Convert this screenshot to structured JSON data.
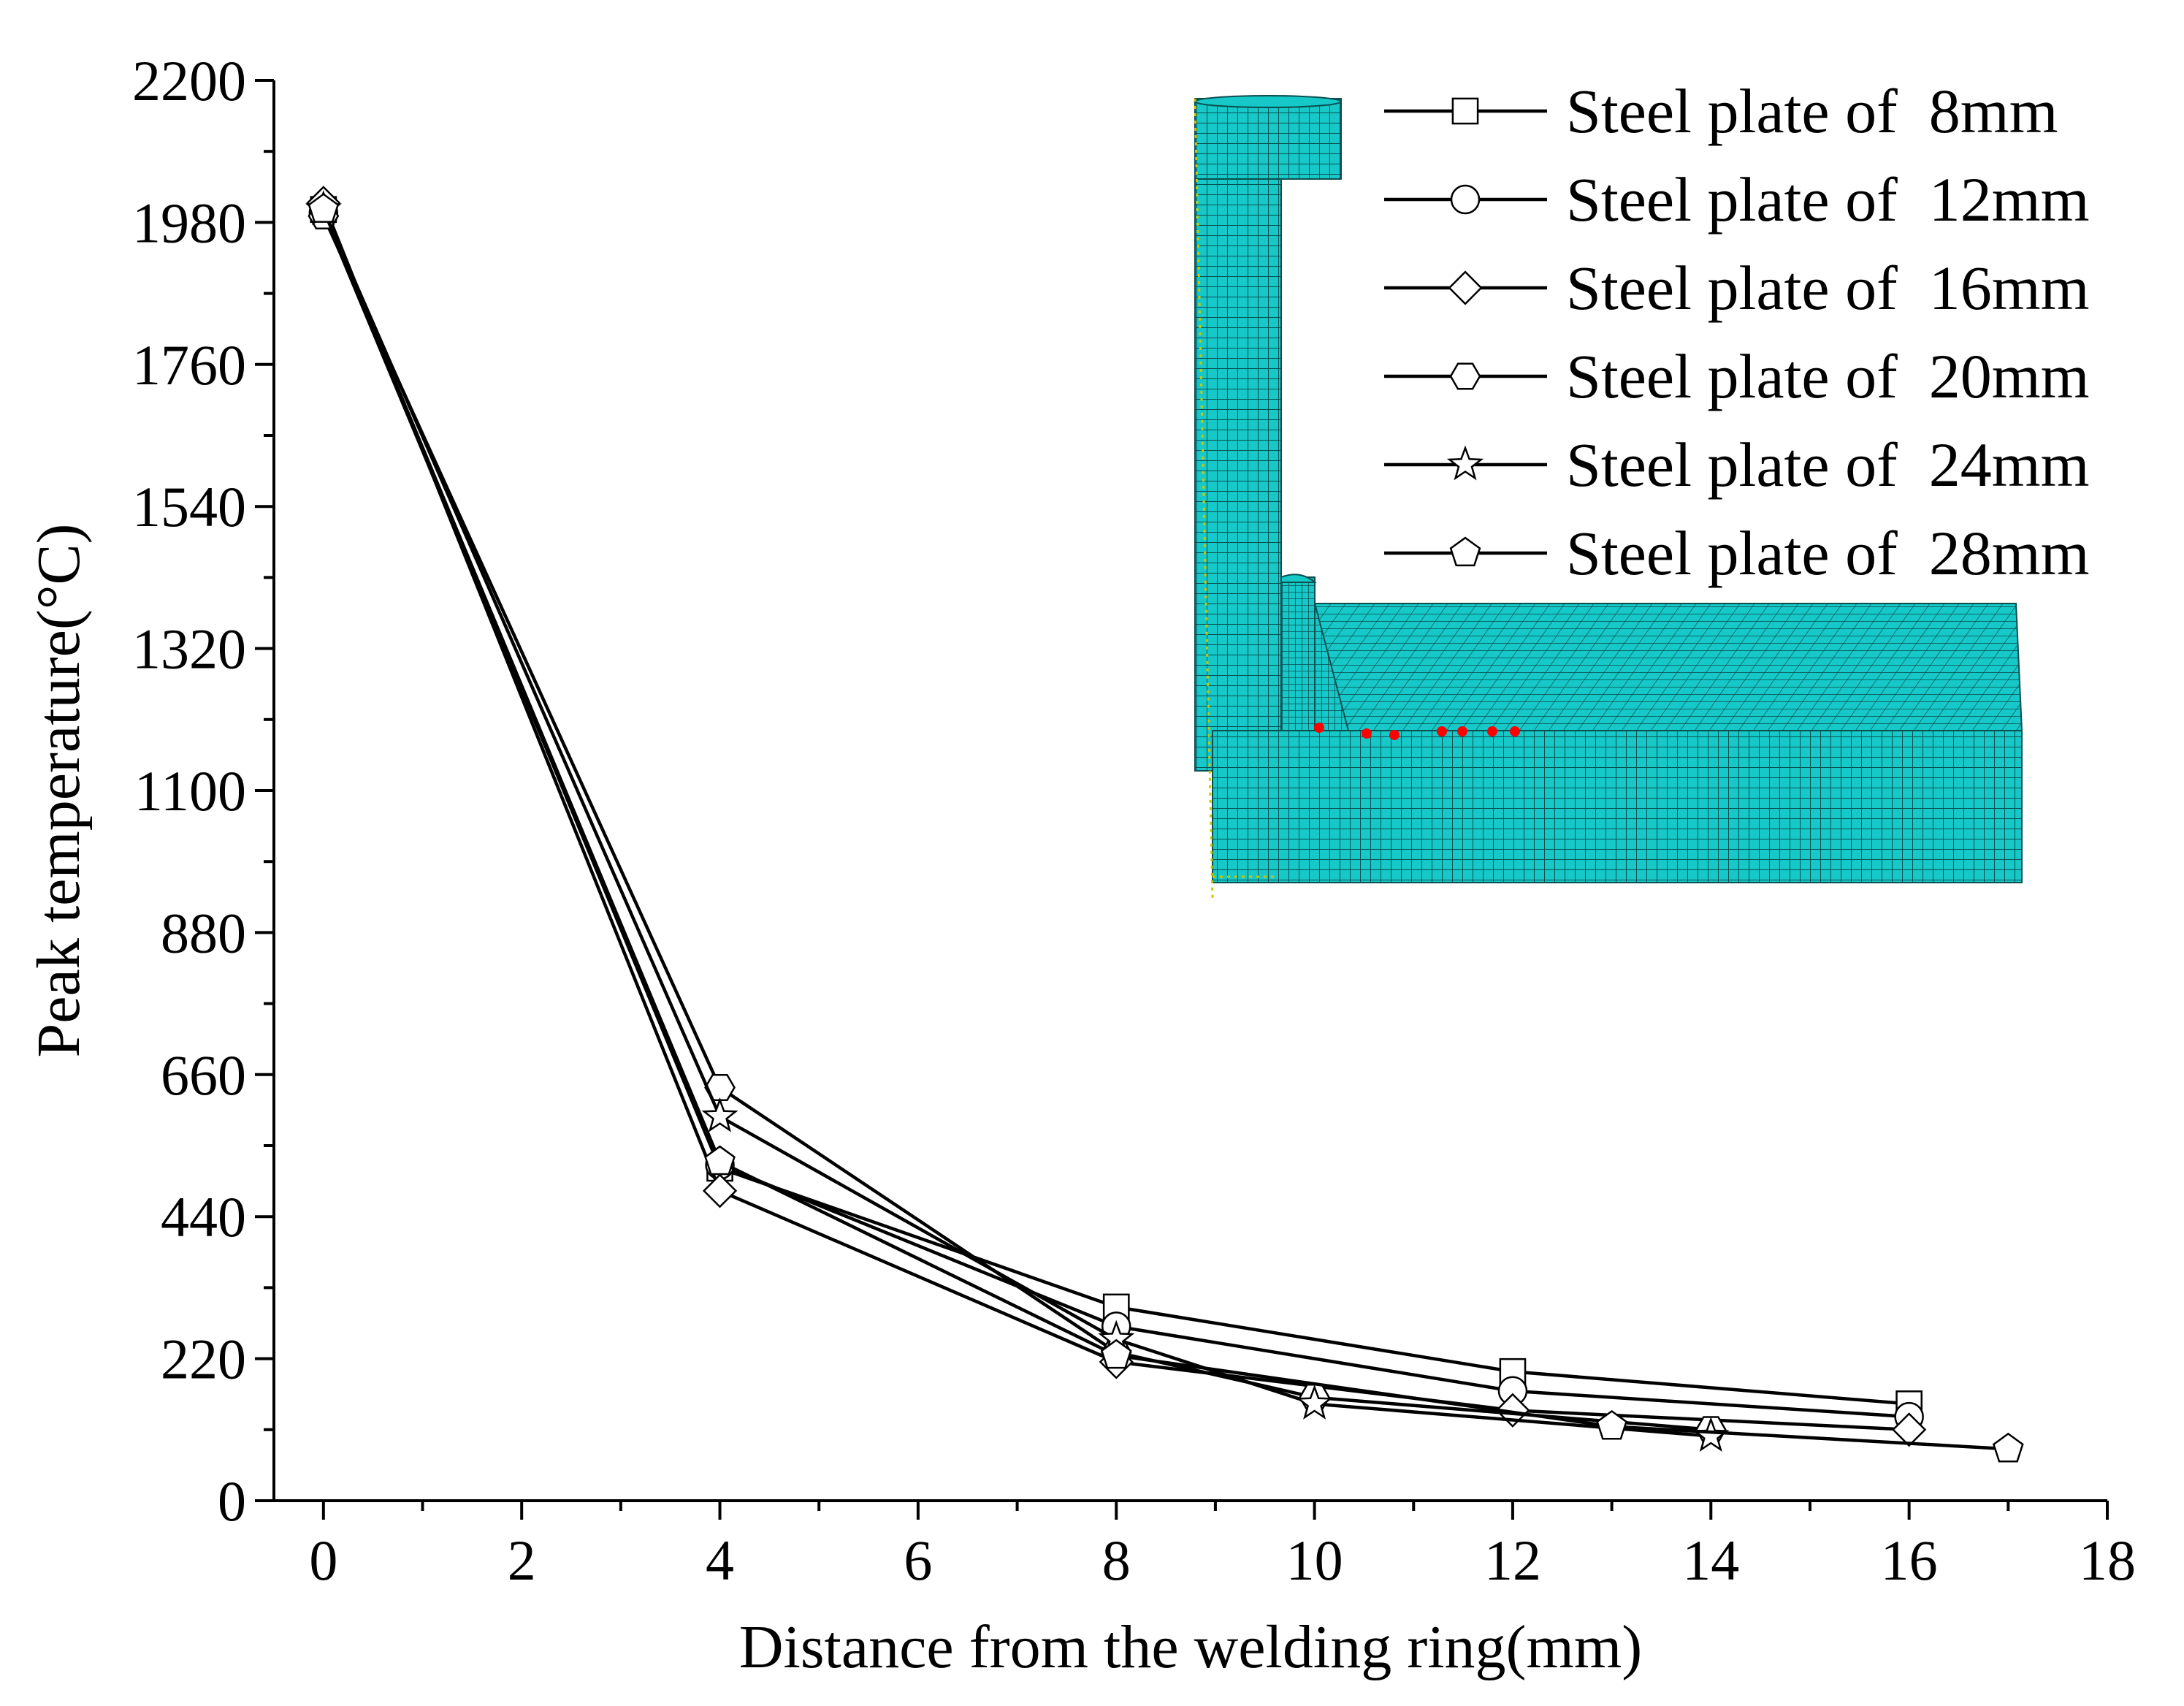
{
  "chart_data": {
    "type": "line",
    "title": "",
    "xlabel": "Distance from the welding ring(mm)",
    "ylabel": "Peak temperature(°C)",
    "xlim": [
      -0.5,
      18
    ],
    "ylim": [
      0,
      2200
    ],
    "xticks": [
      0,
      2,
      4,
      6,
      8,
      10,
      12,
      14,
      16,
      18
    ],
    "yticks": [
      0,
      220,
      440,
      660,
      880,
      1100,
      1320,
      1540,
      1760,
      1980,
      2200
    ],
    "legend_position": "top-right",
    "grid": false,
    "series": [
      {
        "name": "Steel plate of  8mm",
        "marker": "square",
        "points": [
          [
            0,
            2000
          ],
          [
            4,
            515
          ],
          [
            8,
            300
          ],
          [
            12,
            200
          ],
          [
            16,
            150
          ]
        ]
      },
      {
        "name": "Steel plate of  12mm",
        "marker": "circle",
        "points": [
          [
            0,
            1995
          ],
          [
            4,
            520
          ],
          [
            8,
            270
          ],
          [
            12,
            170
          ],
          [
            16,
            130
          ]
        ]
      },
      {
        "name": "Steel plate of  16mm",
        "marker": "diamond",
        "points": [
          [
            0,
            2010
          ],
          [
            4,
            480
          ],
          [
            8,
            215
          ],
          [
            12,
            140
          ],
          [
            16,
            110
          ]
        ]
      },
      {
        "name": "Steel plate of  20mm",
        "marker": "hexagon",
        "points": [
          [
            0,
            1990
          ],
          [
            4,
            640
          ],
          [
            8,
            230
          ],
          [
            10,
            160
          ],
          [
            14,
            110
          ]
        ]
      },
      {
        "name": "Steel plate of  24mm",
        "marker": "star",
        "points": [
          [
            0,
            2000
          ],
          [
            4,
            595
          ],
          [
            8,
            250
          ],
          [
            10,
            150
          ],
          [
            14,
            100
          ]
        ]
      },
      {
        "name": "Steel plate of  28mm",
        "marker": "pentagon",
        "points": [
          [
            0,
            2000
          ],
          [
            4,
            525
          ],
          [
            8,
            225
          ],
          [
            13,
            115
          ],
          [
            17,
            80
          ]
        ]
      }
    ]
  },
  "colors": {
    "line": "#000000",
    "marker_fill": "#ffffff",
    "mesh_fill": "#16c8c8",
    "mesh_line": "#0b4f50",
    "weld_points": "#ff0000"
  },
  "inset": {
    "description_icon": "finite-element-mesh-model",
    "weld_measurement_points": 7
  }
}
